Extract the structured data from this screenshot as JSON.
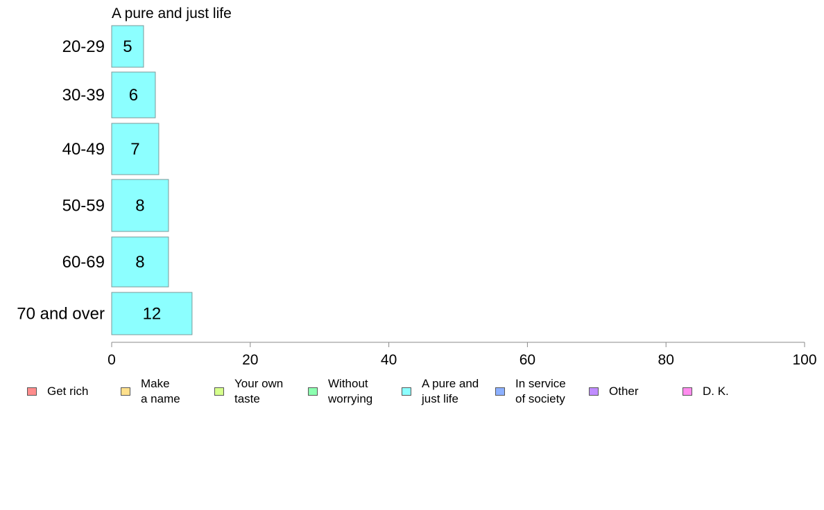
{
  "chart_data": {
    "type": "bar",
    "orientation": "horizontal",
    "title": "A pure and just life",
    "categories": [
      "20-29",
      "30-39",
      "40-49",
      "50-59",
      "60-69",
      "70 and over"
    ],
    "series": [
      {
        "name": "A pure and just life",
        "values": [
          5,
          6,
          7,
          8,
          8,
          12
        ],
        "color": "#8cffff"
      }
    ],
    "bar_values_exact": [
      4.6,
      6.3,
      6.8,
      8.2,
      8.2,
      11.6
    ],
    "xlim": [
      0,
      100
    ],
    "xticks": [
      0,
      20,
      40,
      60,
      80,
      100
    ],
    "xlabel": "",
    "ylabel": "",
    "grid": false,
    "legend_position": "bottom",
    "legend": [
      {
        "label": "Get rich",
        "color": "#ff8c8c"
      },
      {
        "label": "Make\na name",
        "color": "#ffe08c"
      },
      {
        "label": "Your own\ntaste",
        "color": "#d6ff8c"
      },
      {
        "label": "Without\nworrying",
        "color": "#8cffb0"
      },
      {
        "label": "A pure and\njust life",
        "color": "#8cffff"
      },
      {
        "label": "In service\nof society",
        "color": "#8cb0ff"
      },
      {
        "label": "Other",
        "color": "#c08cff"
      },
      {
        "label": "D. K.",
        "color": "#ff8cee"
      }
    ]
  }
}
